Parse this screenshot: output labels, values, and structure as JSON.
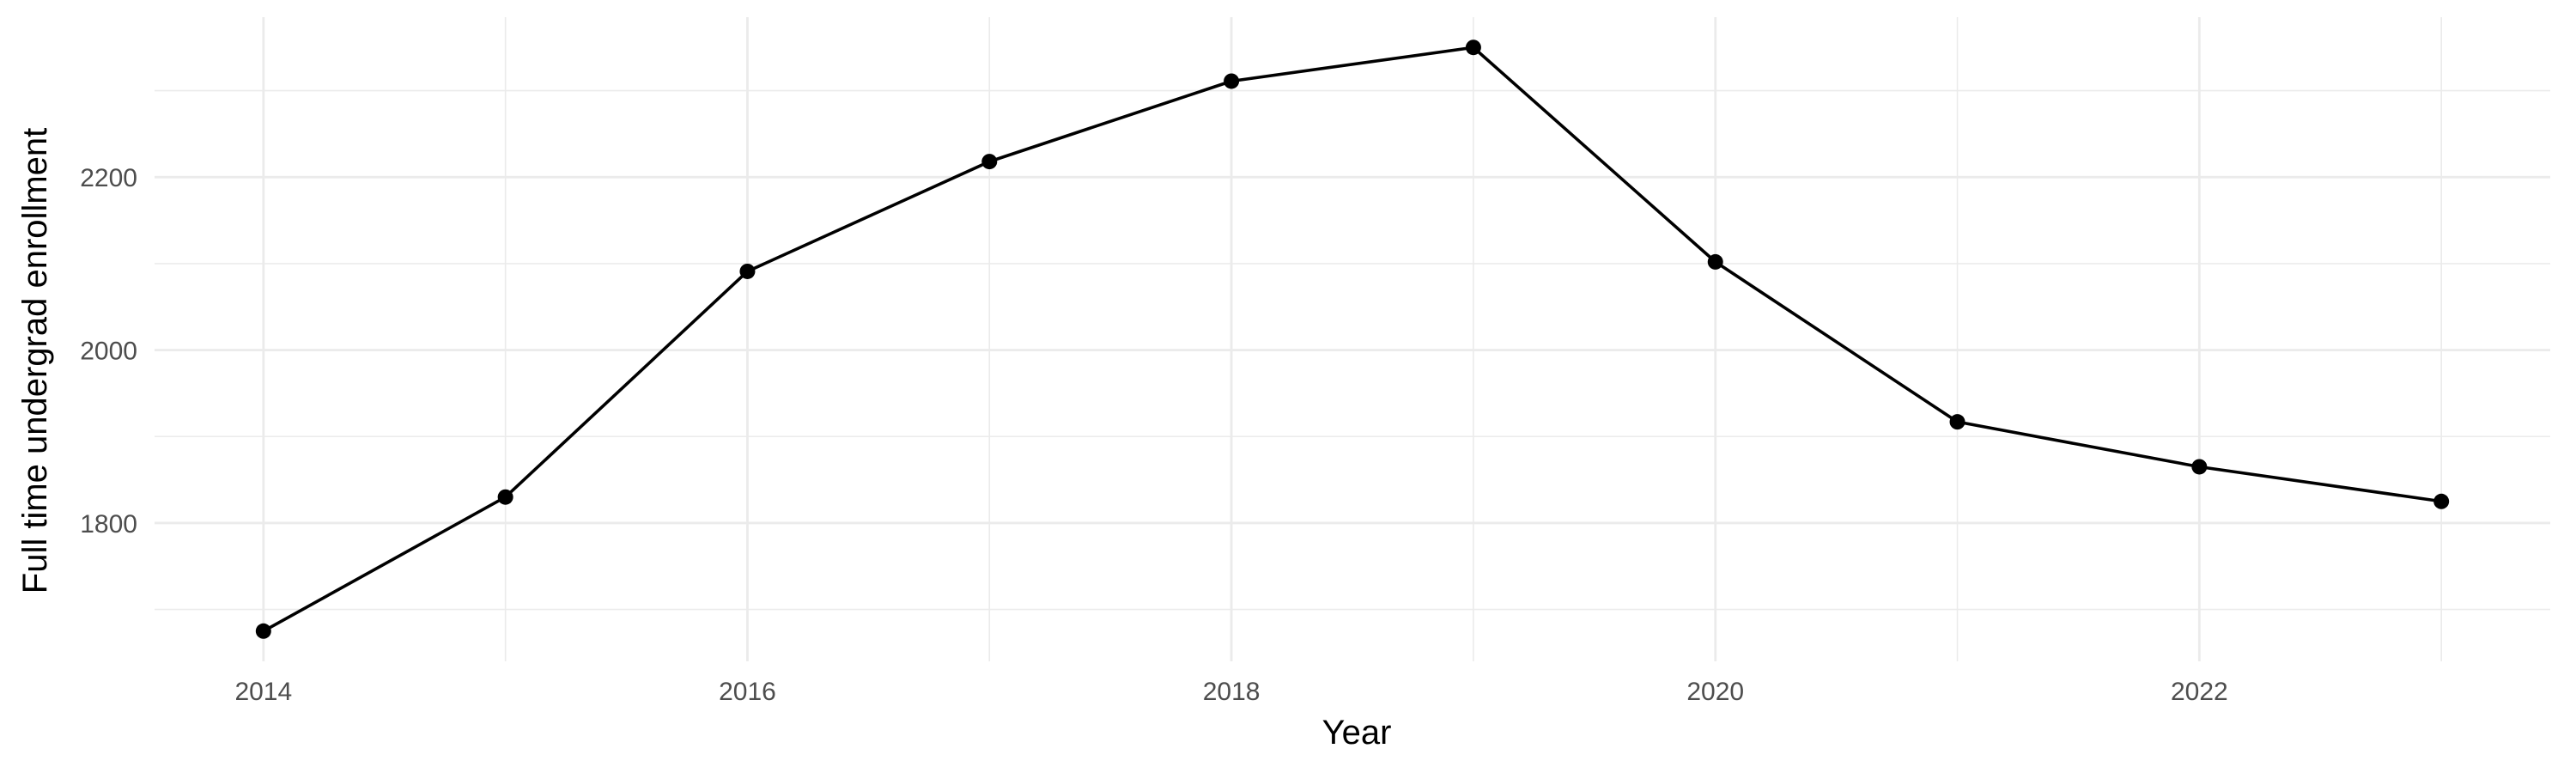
{
  "chart_data": {
    "type": "line",
    "title": "",
    "xlabel": "Year",
    "ylabel": "Full time undergrad enrollment",
    "x": [
      2014,
      2015,
      2016,
      2017,
      2018,
      2019,
      2020,
      2021,
      2022,
      2023
    ],
    "series": [
      {
        "values": [
          1675,
          1830,
          2091,
          2218,
          2311,
          2350,
          2102,
          1917,
          1865,
          1825
        ],
        "color": "#000000"
      }
    ],
    "xlim": [
      2013.55,
      2023.45
    ],
    "ylim": [
      1640,
      2385
    ],
    "x_ticks": [
      2014,
      2016,
      2018,
      2020,
      2022
    ],
    "x_tick_labels": [
      "2014",
      "2016",
      "2018",
      "2020",
      "2022"
    ],
    "x_minor_ticks": [
      2015,
      2017,
      2019,
      2021,
      2023
    ],
    "y_ticks": [
      1800,
      2000,
      2200
    ],
    "y_tick_labels": [
      "1800",
      "2000",
      "2200"
    ],
    "y_minor_ticks": [
      1700,
      1900,
      2100,
      2300
    ],
    "grid": true,
    "legend": "none"
  }
}
